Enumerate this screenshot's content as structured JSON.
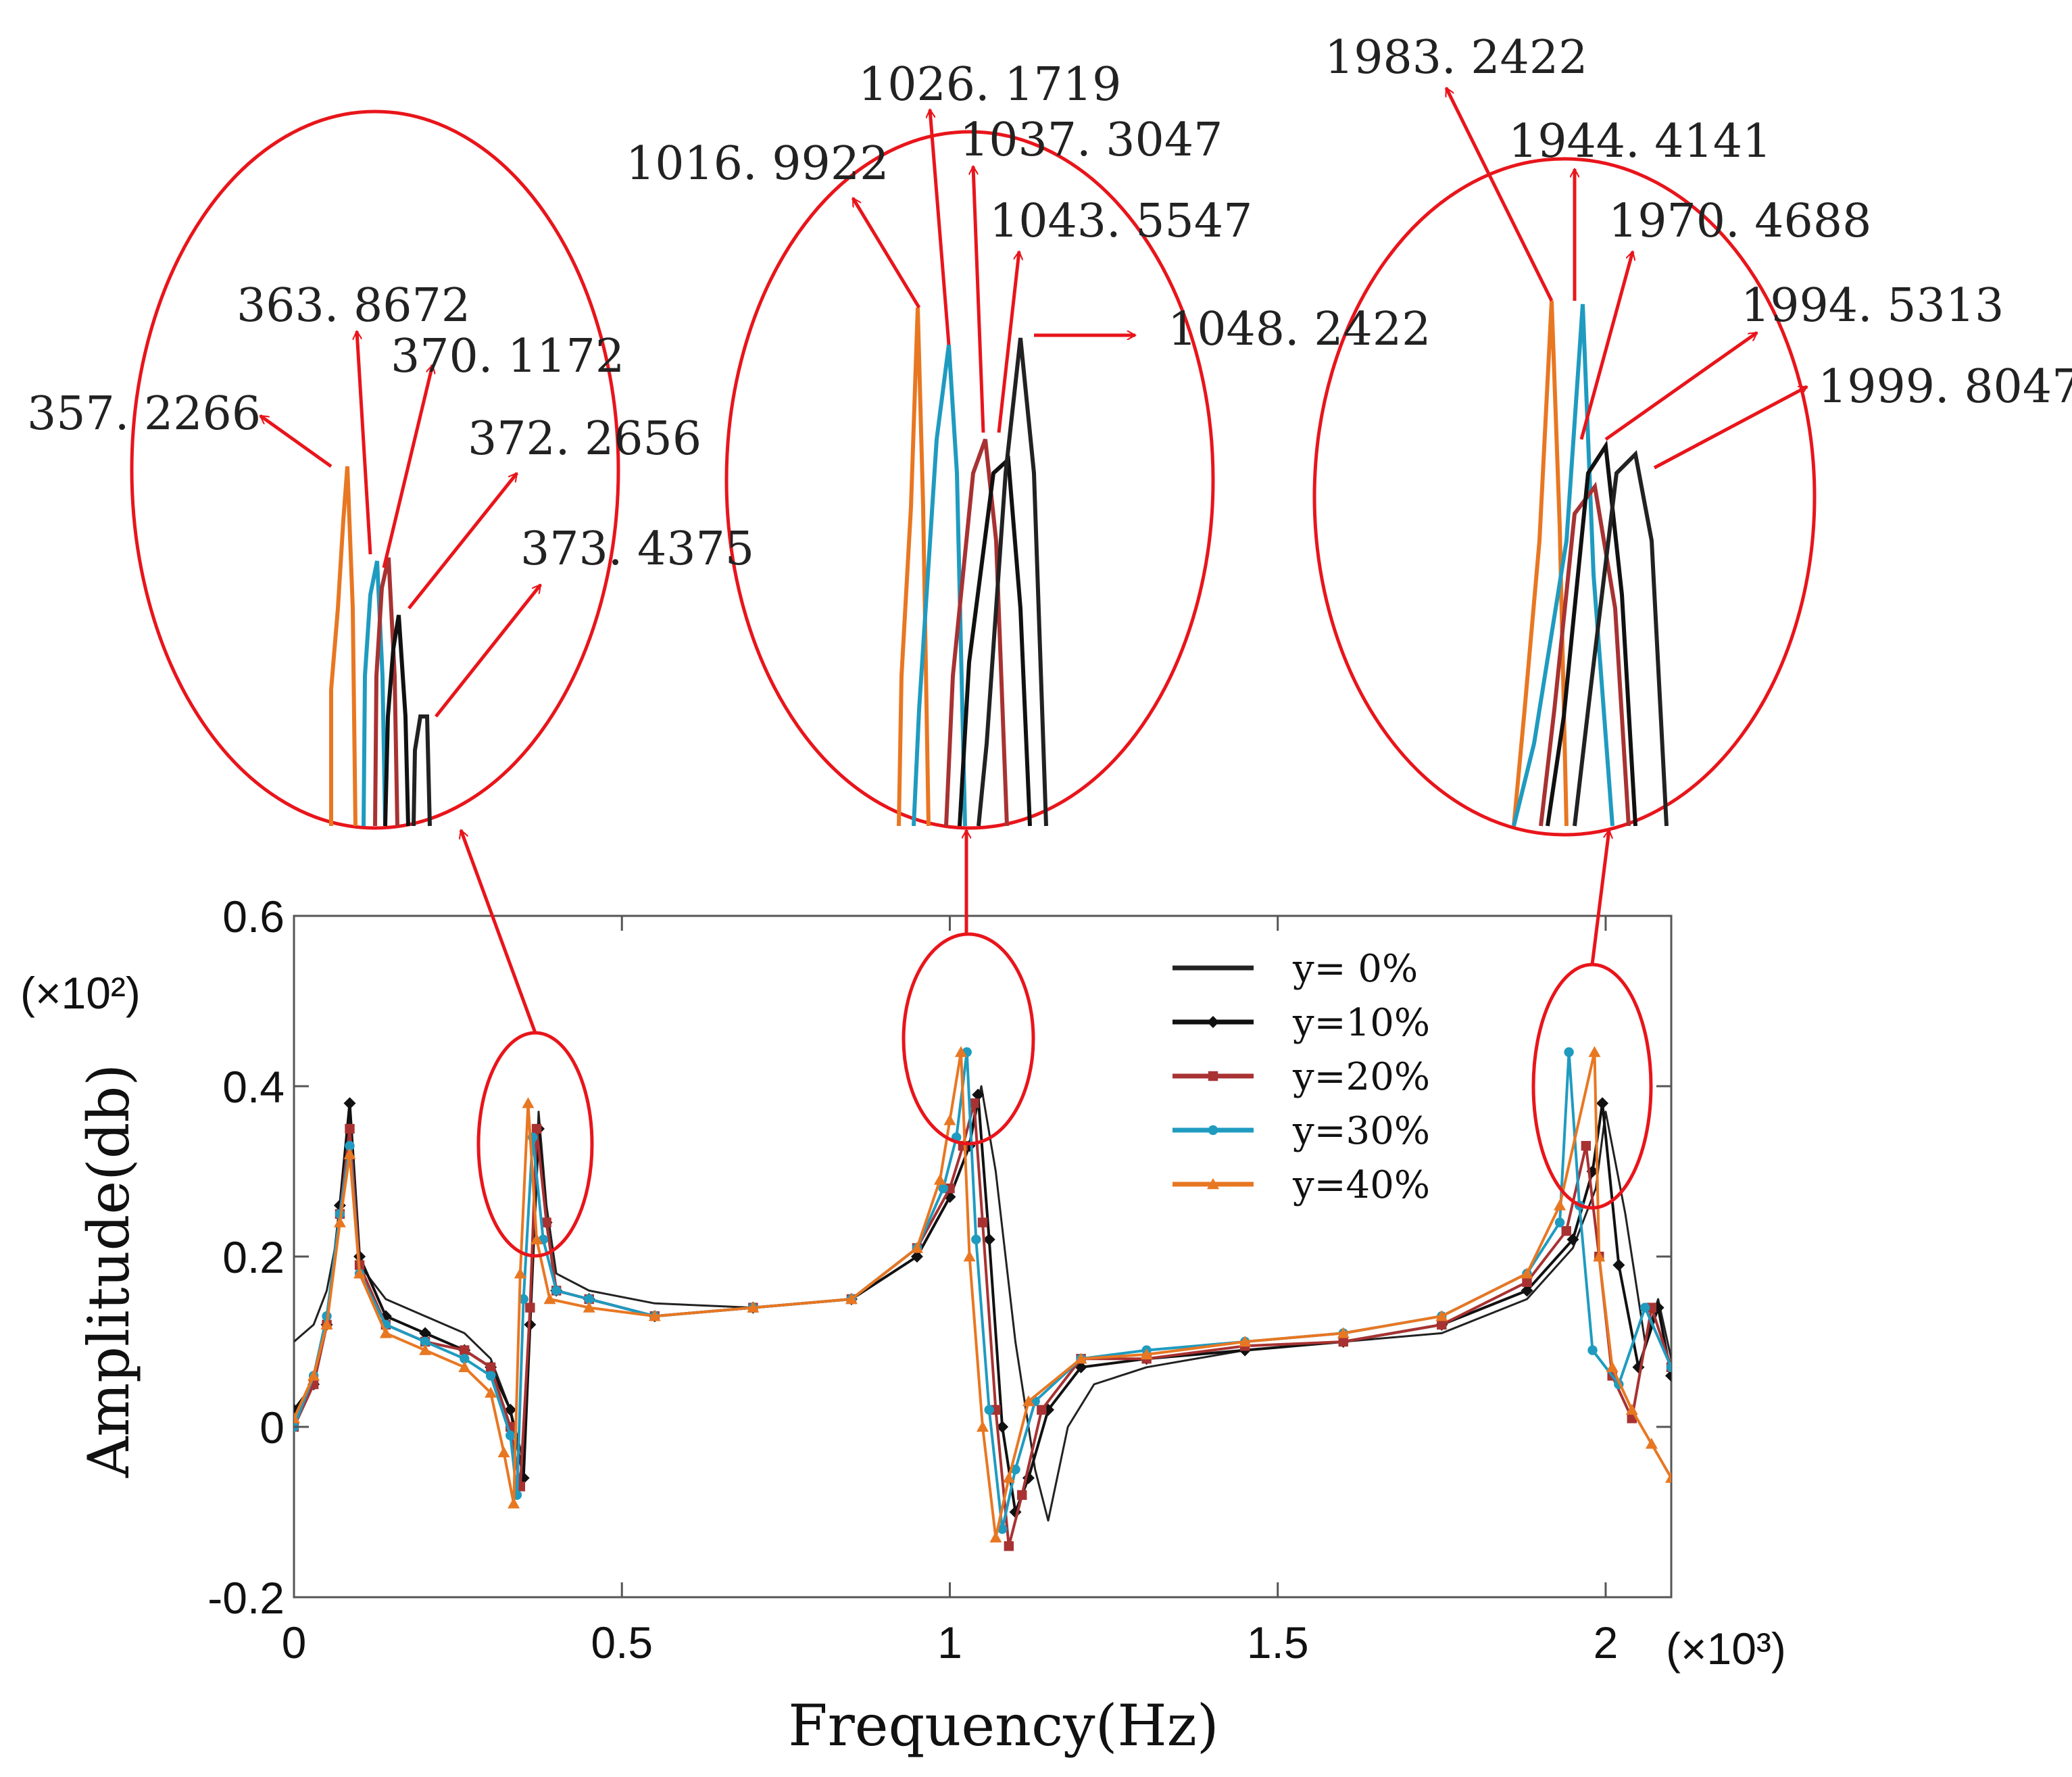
{
  "chart_data": {
    "type": "line",
    "xlabel": "Frequency(Hz)",
    "ylabel": "Amplitude(db)",
    "x_multiplier": "(×10³)",
    "y_multiplier": "(×10²)",
    "xlim": [
      0,
      2.1
    ],
    "ylim": [
      -0.2,
      0.6
    ],
    "x_ticks": [
      "0",
      "0.5",
      "1",
      "1.5",
      "2"
    ],
    "x_tick_values": [
      0,
      0.5,
      1,
      1.5,
      2
    ],
    "y_ticks": [
      "-0.2",
      "0",
      "0.2",
      "0.4",
      "0.6"
    ],
    "y_tick_values": [
      -0.2,
      0,
      0.2,
      0.4,
      0.6
    ],
    "grid": false,
    "legend_position": "top-right",
    "series": [
      {
        "name": "y= 0%",
        "color": "#222222",
        "marker": "none",
        "peaks": [
          1.9998
        ],
        "x": [
          0,
          0.03,
          0.05,
          0.07,
          0.085,
          0.1,
          0.14,
          0.2,
          0.26,
          0.3,
          0.33,
          0.35,
          0.363,
          0.373,
          0.385,
          0.4,
          0.45,
          0.55,
          0.7,
          0.85,
          0.95,
          1.0,
          1.03,
          1.048,
          1.07,
          1.1,
          1.13,
          1.15,
          1.18,
          1.22,
          1.3,
          1.45,
          1.6,
          1.75,
          1.88,
          1.95,
          1.985,
          2.0,
          2.03,
          2.06,
          2.08,
          2.1
        ],
        "y": [
          0.1,
          0.12,
          0.16,
          0.24,
          0.36,
          0.19,
          0.15,
          0.13,
          0.11,
          0.08,
          0.02,
          -0.04,
          0.18,
          0.37,
          0.26,
          0.18,
          0.16,
          0.145,
          0.14,
          0.15,
          0.2,
          0.27,
          0.33,
          0.4,
          0.3,
          0.1,
          -0.05,
          -0.11,
          0.0,
          0.05,
          0.07,
          0.09,
          0.1,
          0.11,
          0.15,
          0.21,
          0.28,
          0.37,
          0.25,
          0.1,
          0.15,
          0.08
        ]
      },
      {
        "name": "y=10%",
        "color": "#111111",
        "marker": "diamond",
        "peaks": [
          373.4375,
          1043.5547,
          1994.5313
        ],
        "x": [
          0,
          0.03,
          0.05,
          0.07,
          0.085,
          0.1,
          0.14,
          0.2,
          0.26,
          0.3,
          0.33,
          0.35,
          0.36,
          0.373,
          0.385,
          0.4,
          0.45,
          0.55,
          0.7,
          0.85,
          0.95,
          1.0,
          1.03,
          1.043,
          1.06,
          1.08,
          1.1,
          1.12,
          1.15,
          1.2,
          1.3,
          1.45,
          1.6,
          1.75,
          1.88,
          1.95,
          1.98,
          1.995,
          2.02,
          2.05,
          2.08,
          2.1
        ],
        "y": [
          0.02,
          0.05,
          0.12,
          0.26,
          0.38,
          0.2,
          0.13,
          0.11,
          0.09,
          0.07,
          0.02,
          -0.06,
          0.12,
          0.35,
          0.24,
          0.16,
          0.15,
          0.13,
          0.14,
          0.15,
          0.2,
          0.27,
          0.33,
          0.39,
          0.22,
          0.0,
          -0.1,
          -0.06,
          0.02,
          0.07,
          0.08,
          0.09,
          0.1,
          0.12,
          0.16,
          0.22,
          0.3,
          0.38,
          0.19,
          0.07,
          0.14,
          0.06
        ]
      },
      {
        "name": "y=20%",
        "color": "#a83232",
        "marker": "square",
        "peaks": [
          370.1172,
          1037.3047,
          1970.4688
        ],
        "x": [
          0,
          0.03,
          0.05,
          0.07,
          0.085,
          0.1,
          0.14,
          0.2,
          0.26,
          0.3,
          0.33,
          0.345,
          0.36,
          0.37,
          0.385,
          0.4,
          0.45,
          0.55,
          0.7,
          0.85,
          0.95,
          1.0,
          1.02,
          1.037,
          1.05,
          1.07,
          1.09,
          1.11,
          1.14,
          1.2,
          1.3,
          1.45,
          1.6,
          1.75,
          1.88,
          1.94,
          1.97,
          1.99,
          2.01,
          2.04,
          2.07,
          2.1
        ],
        "y": [
          0.0,
          0.05,
          0.12,
          0.25,
          0.35,
          0.19,
          0.12,
          0.1,
          0.09,
          0.07,
          0.0,
          -0.07,
          0.14,
          0.35,
          0.24,
          0.16,
          0.15,
          0.13,
          0.14,
          0.15,
          0.21,
          0.28,
          0.33,
          0.38,
          0.24,
          0.02,
          -0.14,
          -0.08,
          0.02,
          0.08,
          0.08,
          0.095,
          0.1,
          0.12,
          0.17,
          0.23,
          0.33,
          0.2,
          0.06,
          0.01,
          0.14,
          0.07
        ]
      },
      {
        "name": "y=30%",
        "color": "#1f9bc0",
        "marker": "circle",
        "peaks": [
          363.8672,
          1026.1719,
          1944.4141
        ],
        "x": [
          0,
          0.03,
          0.05,
          0.07,
          0.085,
          0.1,
          0.14,
          0.2,
          0.26,
          0.3,
          0.33,
          0.34,
          0.35,
          0.364,
          0.38,
          0.4,
          0.45,
          0.55,
          0.7,
          0.85,
          0.95,
          0.99,
          1.01,
          1.026,
          1.04,
          1.06,
          1.08,
          1.1,
          1.13,
          1.2,
          1.3,
          1.45,
          1.6,
          1.75,
          1.88,
          1.93,
          1.944,
          1.96,
          1.98,
          2.02,
          2.06,
          2.1
        ],
        "y": [
          0.0,
          0.06,
          0.13,
          0.25,
          0.33,
          0.18,
          0.12,
          0.1,
          0.08,
          0.06,
          -0.01,
          -0.08,
          0.15,
          0.34,
          0.22,
          0.16,
          0.15,
          0.13,
          0.14,
          0.15,
          0.21,
          0.28,
          0.34,
          0.44,
          0.22,
          0.02,
          -0.12,
          -0.05,
          0.03,
          0.08,
          0.09,
          0.1,
          0.11,
          0.13,
          0.18,
          0.24,
          0.44,
          0.26,
          0.09,
          0.05,
          0.14,
          0.07
        ]
      },
      {
        "name": "y=40%",
        "color": "#e87722",
        "marker": "triangle",
        "peaks": [
          357.2266,
          1016.9922,
          1983.2422
        ],
        "x": [
          0,
          0.03,
          0.05,
          0.07,
          0.085,
          0.1,
          0.14,
          0.2,
          0.26,
          0.3,
          0.32,
          0.335,
          0.345,
          0.357,
          0.37,
          0.39,
          0.45,
          0.55,
          0.7,
          0.85,
          0.95,
          0.985,
          1.0,
          1.017,
          1.03,
          1.05,
          1.07,
          1.09,
          1.12,
          1.2,
          1.3,
          1.45,
          1.6,
          1.75,
          1.88,
          1.93,
          1.983,
          1.99,
          2.01,
          2.04,
          2.07,
          2.1
        ],
        "y": [
          0.01,
          0.06,
          0.12,
          0.24,
          0.32,
          0.18,
          0.11,
          0.09,
          0.07,
          0.04,
          -0.03,
          -0.09,
          0.18,
          0.38,
          0.22,
          0.15,
          0.14,
          0.13,
          0.14,
          0.15,
          0.21,
          0.29,
          0.36,
          0.44,
          0.2,
          0.0,
          -0.13,
          -0.06,
          0.03,
          0.08,
          0.085,
          0.1,
          0.11,
          0.13,
          0.18,
          0.26,
          0.44,
          0.2,
          0.07,
          0.02,
          -0.02,
          -0.06
        ]
      }
    ],
    "zoom_annotations": [
      {
        "region": "near 0.37",
        "labels": [
          "357. 2266",
          "363. 8672",
          "370. 1172",
          "372. 2656",
          "373. 4375"
        ]
      },
      {
        "region": "near 1.03",
        "labels": [
          "1016. 9922",
          "1026. 1719",
          "1037. 3047",
          "1043. 5547",
          "1048. 2422"
        ]
      },
      {
        "region": "near 1.97",
        "labels": [
          "1983. 2422",
          "1944. 4141",
          "1970. 4688",
          "1994. 5313",
          "1999. 8047"
        ]
      }
    ],
    "highlight_color": "#e8151b"
  }
}
